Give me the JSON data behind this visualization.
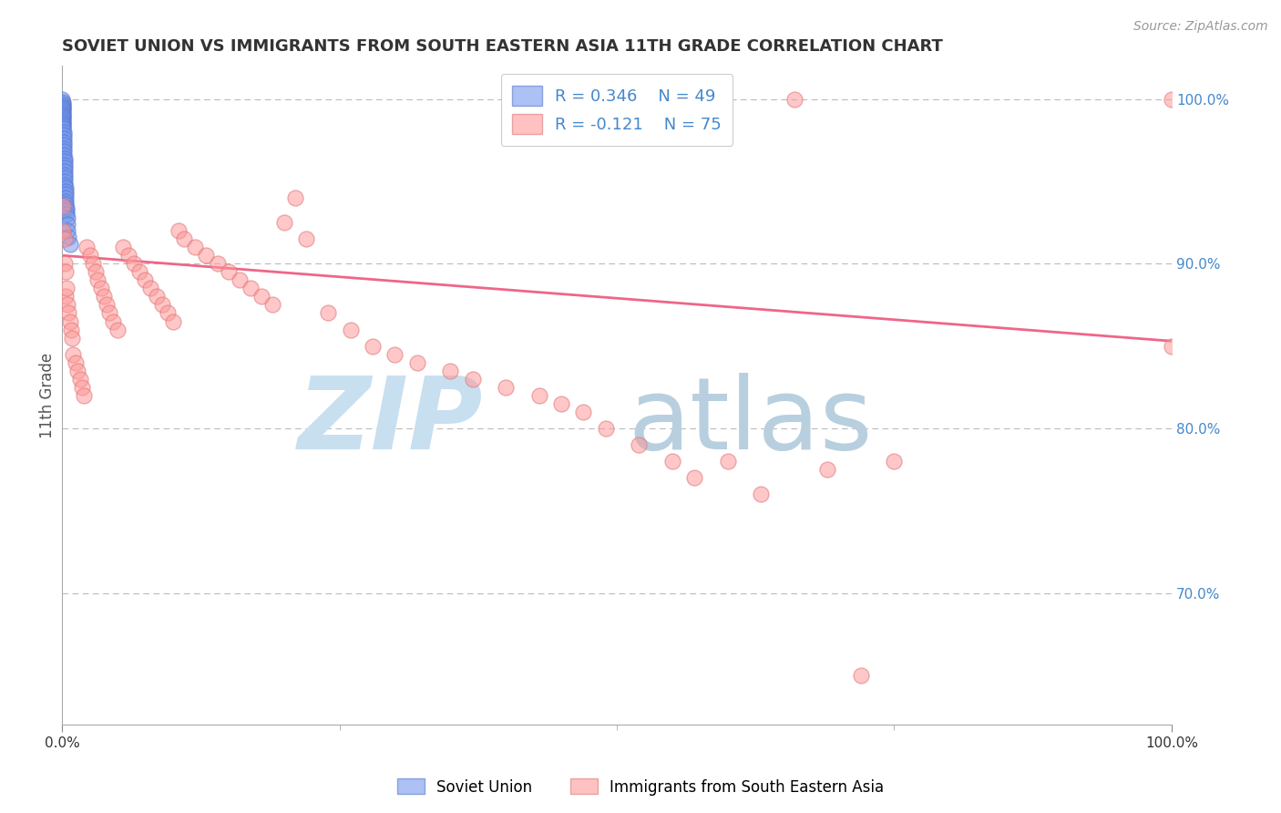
{
  "title": "SOVIET UNION VS IMMIGRANTS FROM SOUTH EASTERN ASIA 11TH GRADE CORRELATION CHART",
  "source": "Source: ZipAtlas.com",
  "ylabel": "11th Grade",
  "legend_r_blue": "R = 0.346",
  "legend_n_blue": "N = 49",
  "legend_r_pink": "R = -0.121",
  "legend_n_pink": "N = 75",
  "legend_labels": [
    "Soviet Union",
    "Immigrants from South Eastern Asia"
  ],
  "blue_color": "#7799EE",
  "blue_edge_color": "#5577CC",
  "pink_color": "#FF9999",
  "pink_edge_color": "#DD7777",
  "pink_line_color": "#EE6688",
  "background_color": "#FFFFFF",
  "right_tick_color": "#4488CC",
  "title_color": "#333333",
  "source_color": "#999999",
  "watermark_zip_color": "#C8DFF0",
  "watermark_atlas_color": "#B8CFDF",
  "xlim": [
    0.0,
    1.0
  ],
  "ylim": [
    0.62,
    1.02
  ],
  "right_yticks": [
    0.7,
    0.8,
    0.9,
    1.0
  ],
  "right_yticklabels": [
    "70.0%",
    "80.0%",
    "90.0%",
    "100.0%"
  ],
  "blue_x": [
    0.0003,
    0.0004,
    0.0005,
    0.0006,
    0.0007,
    0.0008,
    0.0009,
    0.001,
    0.001,
    0.001,
    0.001,
    0.001,
    0.001,
    0.001,
    0.001,
    0.001,
    0.001,
    0.001,
    0.0012,
    0.0013,
    0.0014,
    0.0015,
    0.0016,
    0.0017,
    0.0018,
    0.0019,
    0.002,
    0.002,
    0.002,
    0.002,
    0.002,
    0.002,
    0.002,
    0.002,
    0.0025,
    0.003,
    0.003,
    0.003,
    0.003,
    0.003,
    0.003,
    0.004,
    0.004,
    0.004,
    0.005,
    0.005,
    0.005,
    0.006,
    0.007
  ],
  "blue_y": [
    1.0,
    0.998,
    0.997,
    0.996,
    0.995,
    0.994,
    0.993,
    0.992,
    0.991,
    0.99,
    0.989,
    0.988,
    0.987,
    0.986,
    0.985,
    0.984,
    0.983,
    0.982,
    0.98,
    0.978,
    0.976,
    0.974,
    0.972,
    0.97,
    0.968,
    0.966,
    0.964,
    0.962,
    0.96,
    0.958,
    0.956,
    0.954,
    0.952,
    0.95,
    0.948,
    0.946,
    0.944,
    0.942,
    0.94,
    0.938,
    0.936,
    0.934,
    0.932,
    0.93,
    0.928,
    0.924,
    0.92,
    0.916,
    0.912
  ],
  "pink_x": [
    0.001,
    0.001,
    0.002,
    0.002,
    0.003,
    0.003,
    0.004,
    0.005,
    0.006,
    0.007,
    0.008,
    0.009,
    0.01,
    0.012,
    0.014,
    0.016,
    0.018,
    0.02,
    0.022,
    0.025,
    0.028,
    0.03,
    0.032,
    0.035,
    0.038,
    0.04,
    0.043,
    0.046,
    0.05,
    0.055,
    0.06,
    0.065,
    0.07,
    0.075,
    0.08,
    0.085,
    0.09,
    0.095,
    0.1,
    0.105,
    0.11,
    0.12,
    0.13,
    0.14,
    0.15,
    0.16,
    0.17,
    0.18,
    0.19,
    0.2,
    0.21,
    0.22,
    0.24,
    0.26,
    0.28,
    0.3,
    0.32,
    0.35,
    0.37,
    0.4,
    0.43,
    0.45,
    0.47,
    0.49,
    0.52,
    0.55,
    0.57,
    0.6,
    0.63,
    0.66,
    0.69,
    0.72,
    0.75,
    1.0,
    1.0
  ],
  "pink_y": [
    0.935,
    0.92,
    0.915,
    0.9,
    0.895,
    0.88,
    0.885,
    0.875,
    0.87,
    0.865,
    0.86,
    0.855,
    0.845,
    0.84,
    0.835,
    0.83,
    0.825,
    0.82,
    0.91,
    0.905,
    0.9,
    0.895,
    0.89,
    0.885,
    0.88,
    0.875,
    0.87,
    0.865,
    0.86,
    0.91,
    0.905,
    0.9,
    0.895,
    0.89,
    0.885,
    0.88,
    0.875,
    0.87,
    0.865,
    0.92,
    0.915,
    0.91,
    0.905,
    0.9,
    0.895,
    0.89,
    0.885,
    0.88,
    0.875,
    0.925,
    0.94,
    0.915,
    0.87,
    0.86,
    0.85,
    0.845,
    0.84,
    0.835,
    0.83,
    0.825,
    0.82,
    0.815,
    0.81,
    0.8,
    0.79,
    0.78,
    0.77,
    0.78,
    0.76,
    1.0,
    0.775,
    0.65,
    0.78,
    1.0,
    0.85
  ],
  "pink_line_start_y": 0.905,
  "pink_line_end_y": 0.853,
  "blue_line_visible": false
}
